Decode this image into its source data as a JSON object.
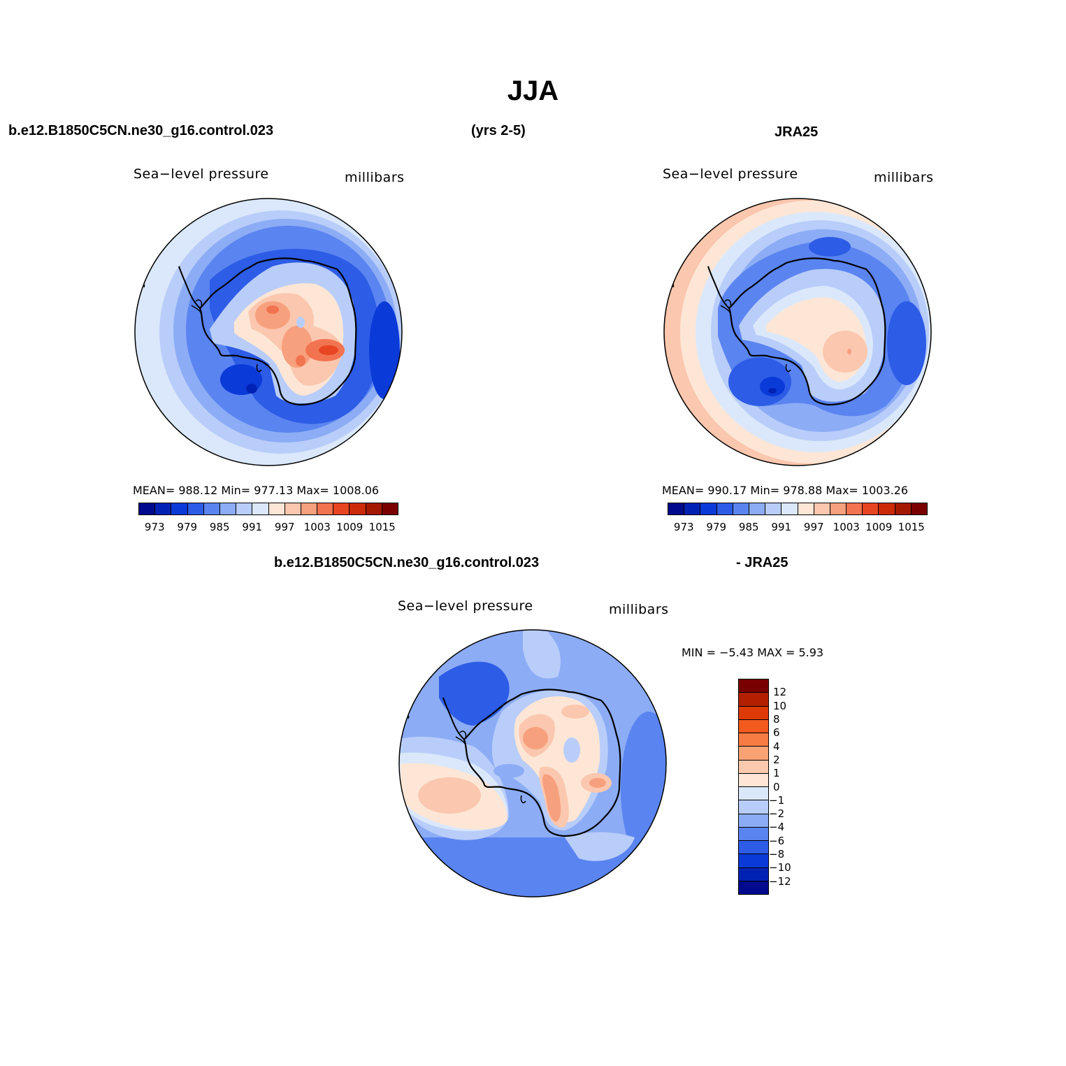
{
  "title": "JJA",
  "headers": {
    "left": "b.e12.B1850C5CN.ne30_g16.control.023",
    "center": "(yrs 2-5)",
    "right": "JRA25",
    "diff_left": "b.e12.B1850C5CN.ne30_g16.control.023",
    "diff_right": "- JRA25"
  },
  "panels": {
    "model": {
      "variable": "Sea−level pressure",
      "units": "millibars",
      "stats": "MEAN=  988.12    Min=  977.13    Max=  1008.06"
    },
    "obs": {
      "variable": "Sea−level pressure",
      "units": "millibars",
      "stats": "MEAN=  990.17    Min=  978.88    Max=  1003.26"
    },
    "diff": {
      "variable": "Sea−level pressure",
      "units": "millibars",
      "stats": "MIN =    −5.43  MAX =     5.93"
    }
  },
  "colorbar_main": {
    "colors": [
      "#000a8c",
      "#0022b4",
      "#0a3ad8",
      "#2d5ce6",
      "#5a84f0",
      "#8cacf5",
      "#b9cdfa",
      "#dbe8fb",
      "#fde6d6",
      "#fbc7ae",
      "#f7a07e",
      "#f27350",
      "#e84522",
      "#cc2a08",
      "#a41800",
      "#7a0000"
    ],
    "tick_labels": [
      "973",
      "979",
      "985",
      "991",
      "997",
      "1003",
      "1009",
      "1015"
    ]
  },
  "colorbar_diff": {
    "colors": [
      "#7a0000",
      "#b22000",
      "#de3a06",
      "#f25a1e",
      "#f77c44",
      "#f9a274",
      "#fbc9ad",
      "#fde6d6",
      "#dbe8fb",
      "#b9cdfa",
      "#8cacf5",
      "#5a84f0",
      "#2d5ce6",
      "#0a3ad8",
      "#0022b4",
      "#000a8c"
    ],
    "tick_labels": [
      "12",
      "10",
      "8",
      "6",
      "4",
      "2",
      "1",
      "0",
      "−1",
      "−2",
      "−4",
      "−6",
      "−8",
      "−10",
      "−12"
    ]
  }
}
